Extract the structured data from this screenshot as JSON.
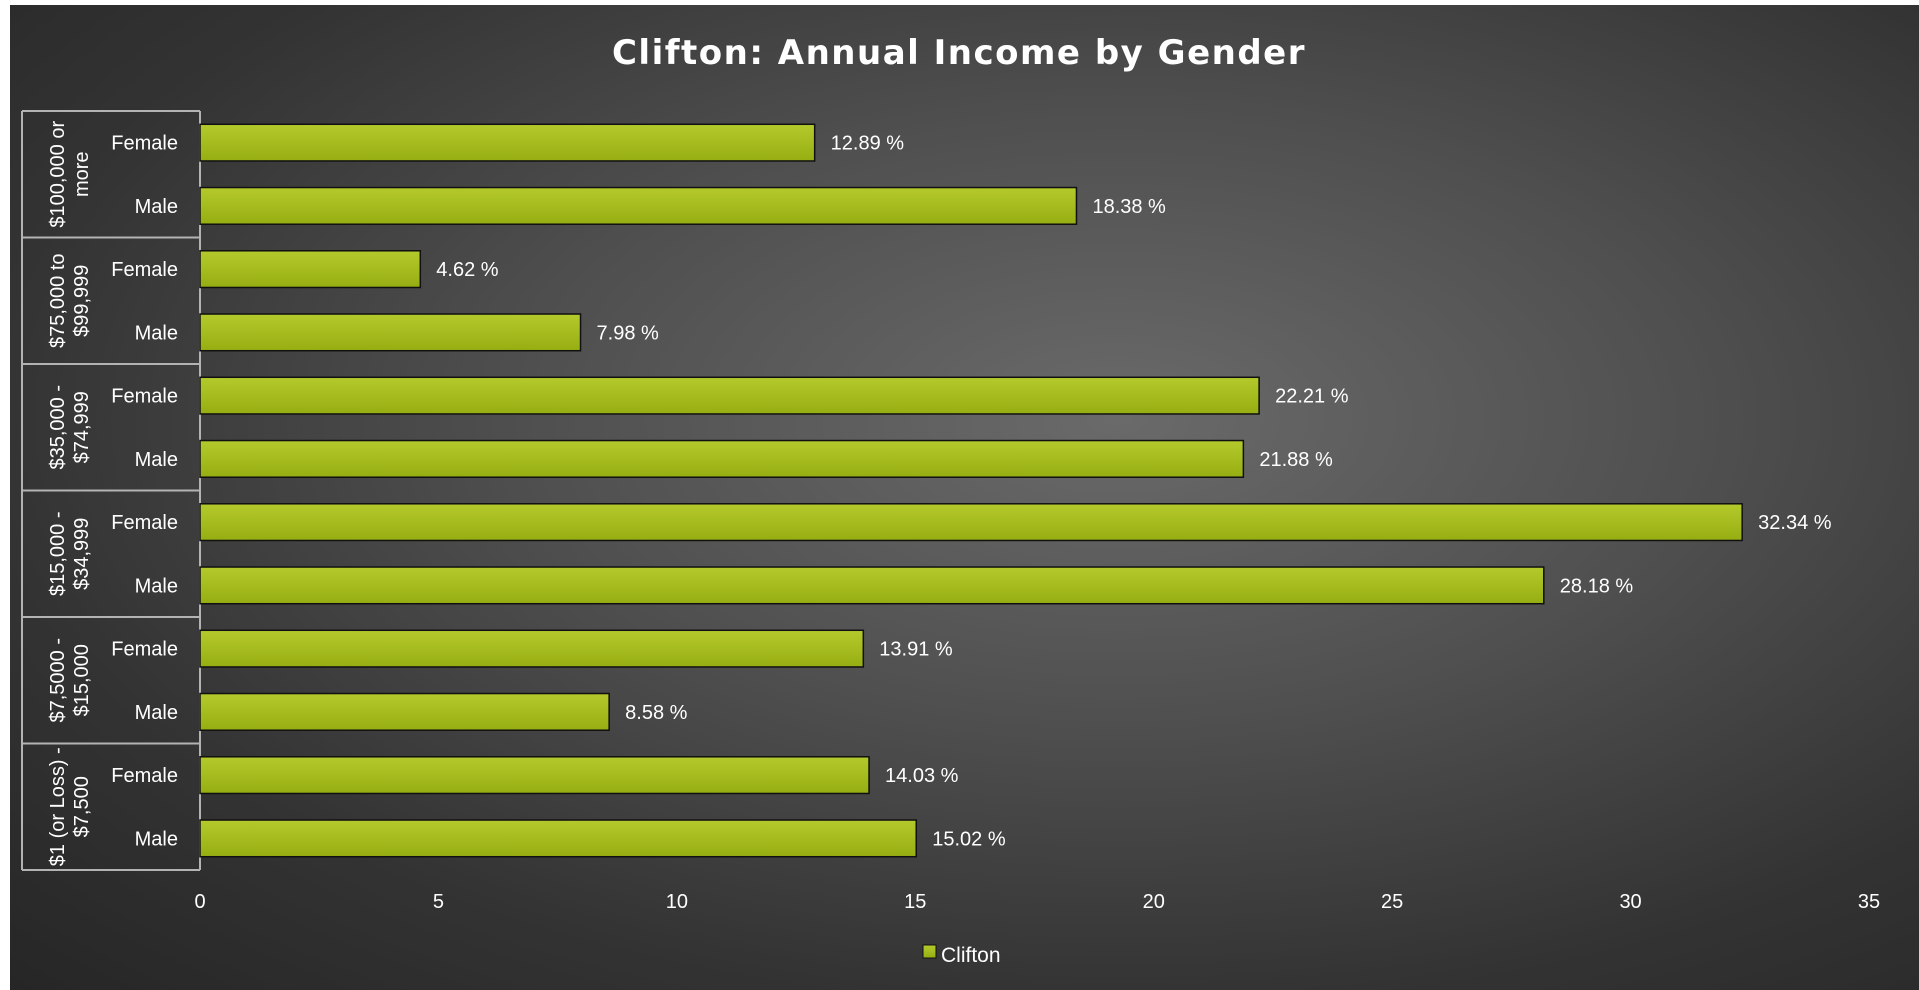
{
  "chart_data": {
    "type": "bar",
    "orientation": "horizontal",
    "title": "Clifton: Annual Income by Gender",
    "xlim": [
      0,
      35
    ],
    "x_ticks": [
      "0",
      "5",
      "10",
      "15",
      "20",
      "25",
      "30",
      "35"
    ],
    "grid": false,
    "legend": {
      "position": "bottom",
      "entries": [
        "Clifton"
      ]
    },
    "groups": [
      {
        "label_lines": [
          "$100,000 or",
          "more"
        ],
        "categories": [
          "Female",
          "Male"
        ],
        "values": [
          12.89,
          18.38
        ],
        "labels": [
          "12.89 %",
          "18.38 %"
        ]
      },
      {
        "label_lines": [
          "$75,000 to",
          "$99,999"
        ],
        "categories": [
          "Female",
          "Male"
        ],
        "values": [
          4.62,
          7.98
        ],
        "labels": [
          "4.62 %",
          "7.98 %"
        ]
      },
      {
        "label_lines": [
          "$35,000 -",
          "$74,999"
        ],
        "categories": [
          "Female",
          "Male"
        ],
        "values": [
          22.21,
          21.88
        ],
        "labels": [
          "22.21 %",
          "21.88 %"
        ]
      },
      {
        "label_lines": [
          "$15,000 -",
          "$34,999"
        ],
        "categories": [
          "Female",
          "Male"
        ],
        "values": [
          32.34,
          28.18
        ],
        "labels": [
          "32.34 %",
          "28.18 %"
        ]
      },
      {
        "label_lines": [
          "$7,5000 -",
          "$15,000"
        ],
        "categories": [
          "Female",
          "Male"
        ],
        "values": [
          13.91,
          8.58
        ],
        "labels": [
          "13.91 %",
          "8.58 %"
        ]
      },
      {
        "label_lines": [
          "$1 (or Loss) -",
          "$7,500"
        ],
        "categories": [
          "Female",
          "Male"
        ],
        "values": [
          14.03,
          15.02
        ],
        "labels": [
          "14.03 %",
          "15.02 %"
        ]
      }
    ],
    "series": [
      {
        "name": "Clifton"
      }
    ],
    "colors": {
      "bar_top": "#b4ca2c",
      "bar_bottom": "#97ae12",
      "bar_stroke": "#111111",
      "axis": "#b3b3b3",
      "text": "#ffffff"
    }
  }
}
